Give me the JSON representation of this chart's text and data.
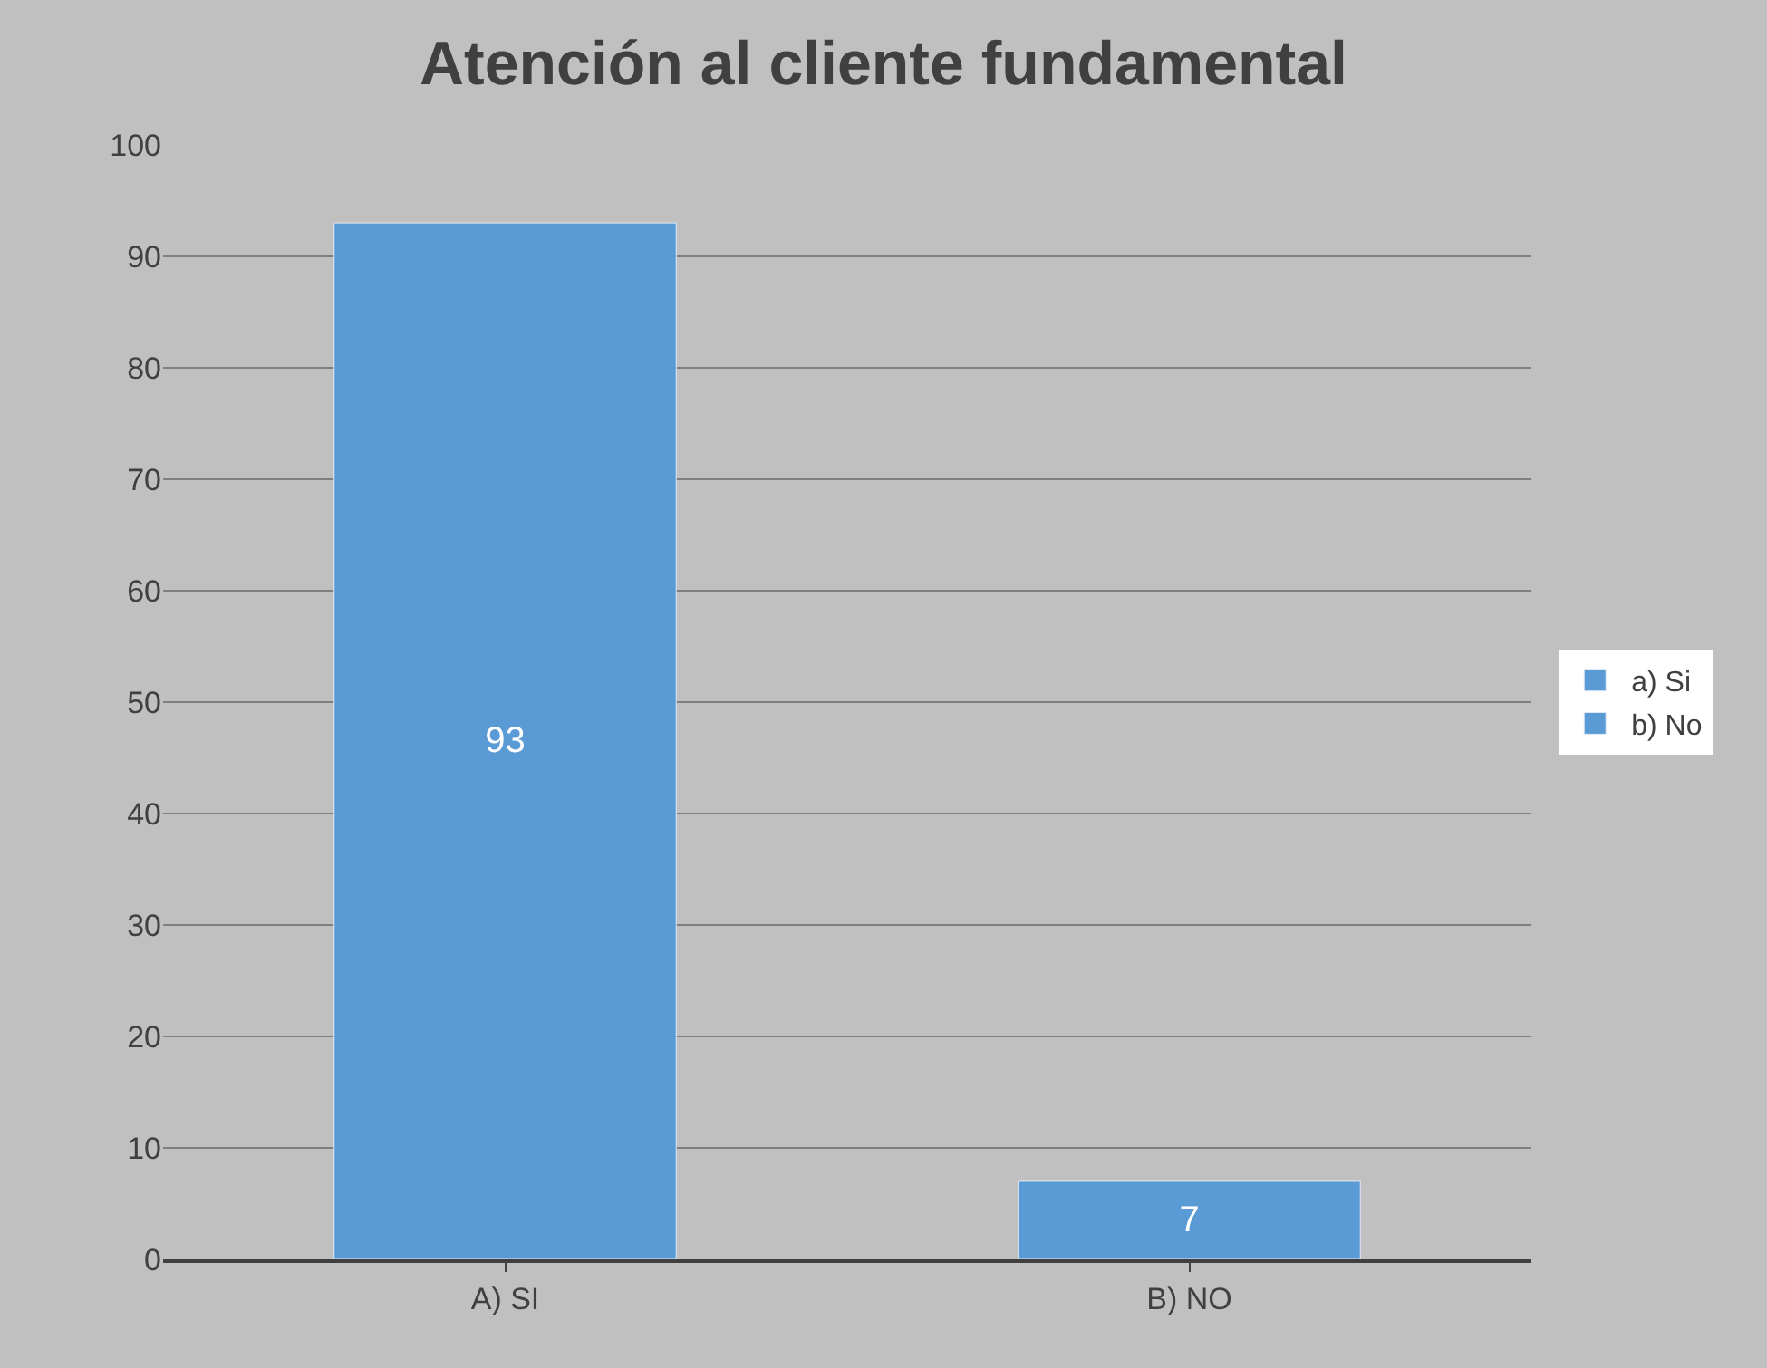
{
  "chart_data": {
    "type": "bar",
    "title": "Atención al cliente fundamental",
    "categories": [
      "A) SI",
      "B) NO"
    ],
    "series": [
      {
        "name": "a) Si",
        "color": "#5b9bd5",
        "values": [
          93,
          null
        ]
      },
      {
        "name": "b) No",
        "color": "#5b9bd5",
        "values": [
          null,
          7
        ]
      }
    ],
    "ylim": [
      0,
      100
    ],
    "yticks": [
      0,
      10,
      20,
      30,
      40,
      50,
      60,
      70,
      80,
      90,
      100
    ],
    "grid": "y",
    "legend": "right",
    "data_labels": true
  }
}
